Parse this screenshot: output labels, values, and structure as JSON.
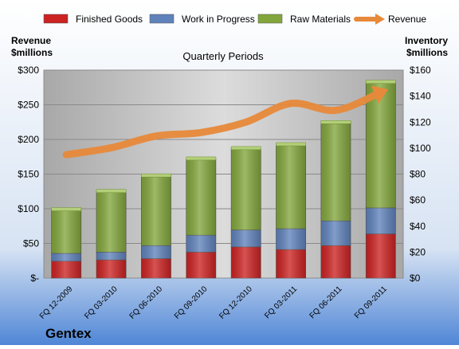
{
  "chart_data": {
    "type": "bar",
    "subtitle": "Quarterly Periods",
    "company": "Gentex",
    "left_axis": {
      "label_line1": "Revenue",
      "label_line2": "$millions",
      "ylim": [
        0,
        300
      ],
      "ticks": [
        "$-",
        "$50",
        "$100",
        "$150",
        "$200",
        "$250",
        "$300"
      ]
    },
    "right_axis": {
      "label_line1": "Inventory",
      "label_line2": "$millions",
      "ylim": [
        0,
        160
      ],
      "ticks": [
        "$0",
        "$20",
        "$40",
        "$60",
        "$80",
        "$100",
        "$120",
        "$140",
        "$160"
      ]
    },
    "categories": [
      "FQ 12-2009",
      "FQ 03-2010",
      "FQ 06-2010",
      "FQ 09-2010",
      "FQ 12-2010",
      "FQ 03-2011",
      "FQ 06-2011",
      "FQ 09-2011"
    ],
    "series": [
      {
        "name": "Finished Goods",
        "axis": "right",
        "color": "#cc2222",
        "values": [
          13,
          14,
          15,
          20,
          24,
          22,
          25,
          34
        ]
      },
      {
        "name": "Work in Progress",
        "axis": "right",
        "color": "#5f82bb",
        "values": [
          6,
          6,
          10,
          13,
          13,
          16,
          19,
          20
        ]
      },
      {
        "name": "Raw Materials",
        "axis": "right",
        "color": "#82a63c",
        "values": [
          34,
          47,
          54,
          59,
          63,
          65,
          76,
          97
        ]
      },
      {
        "name": "Revenue",
        "axis": "left",
        "type": "line",
        "color": "#e7893a",
        "values": [
          178,
          188,
          205,
          210,
          225,
          252,
          242,
          268
        ]
      }
    ],
    "grid": true,
    "legend": "top"
  }
}
